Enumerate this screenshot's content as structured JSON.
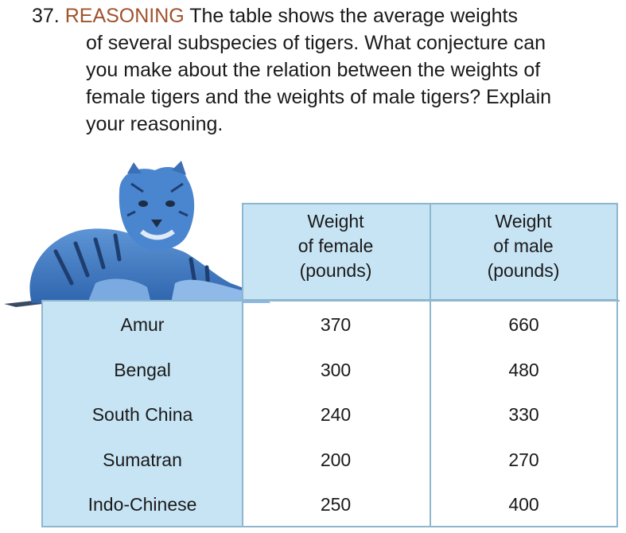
{
  "problem": {
    "number": "37.",
    "keyword": "REASONING",
    "first_line": "The table shows the average weights",
    "body": "of several subspecies of tigers. What conjecture can\nyou make about the relation between the weights of\nfemale tigers and the weights of male tigers? Explain\nyour reasoning."
  },
  "colors": {
    "keyword": "#a0522d",
    "table_fill": "#c7e4f4",
    "table_border": "#8db6cf",
    "tiger": "#3a78c4"
  },
  "illustration": {
    "icon": "tiger-icon"
  },
  "table": {
    "headers": {
      "female": "Weight\nof female\n(pounds)",
      "male": "Weight\nof male\n(pounds)"
    },
    "rows": [
      {
        "name": "Amur",
        "female": "370",
        "male": "660"
      },
      {
        "name": "Bengal",
        "female": "300",
        "male": "480"
      },
      {
        "name": "South China",
        "female": "240",
        "male": "330"
      },
      {
        "name": "Sumatran",
        "female": "200",
        "male": "270"
      },
      {
        "name": "Indo-Chinese",
        "female": "250",
        "male": "400"
      }
    ]
  }
}
